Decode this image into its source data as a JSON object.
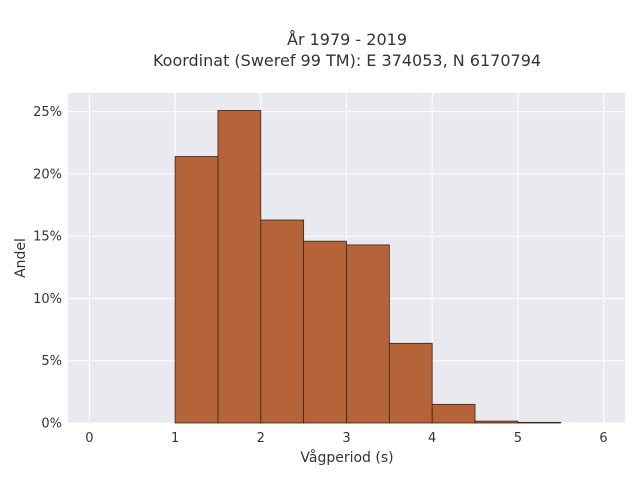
{
  "chart_data": {
    "type": "bar",
    "title_lines": [
      "År 1979 - 2019",
      "Koordinat (Sweref 99 TM): E 374053, N 6170794"
    ],
    "xlabel": "Vågperiod (s)",
    "ylabel": "Andel",
    "xlim": [
      -0.25,
      6.25
    ],
    "ylim": [
      0,
      26.5
    ],
    "x_ticks": [
      0,
      1,
      2,
      3,
      4,
      5,
      6
    ],
    "y_ticks": [
      0,
      5,
      10,
      15,
      20,
      25
    ],
    "y_tick_labels": [
      "0%",
      "5%",
      "10%",
      "15%",
      "20%",
      "25%"
    ],
    "bin_width": 0.5,
    "bins": [
      {
        "x0": 1.0,
        "value": 21.4
      },
      {
        "x0": 1.5,
        "value": 25.1
      },
      {
        "x0": 2.0,
        "value": 16.3
      },
      {
        "x0": 2.5,
        "value": 14.6
      },
      {
        "x0": 3.0,
        "value": 14.3
      },
      {
        "x0": 3.5,
        "value": 6.4
      },
      {
        "x0": 4.0,
        "value": 1.5
      },
      {
        "x0": 4.5,
        "value": 0.15
      },
      {
        "x0": 5.0,
        "value": 0.05
      }
    ],
    "bar_color": "#b5643a",
    "bar_edge_color": "#3a2416",
    "plot_bg": "#e9e9f0",
    "grid": true,
    "legend": false
  }
}
